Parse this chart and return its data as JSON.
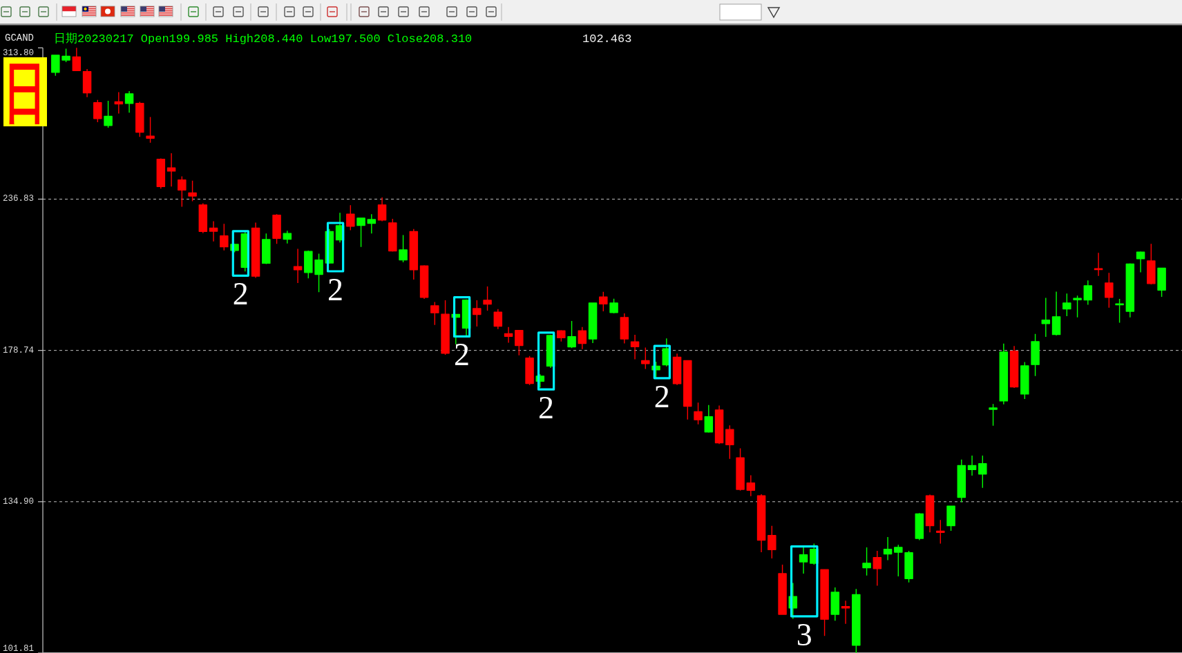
{
  "chart_data": {
    "type": "candlestick",
    "title": "GCAND",
    "subtitle": "日期20230217 Open199.985 High208.440 Low197.500 Close208.310",
    "categories": [
      null,
      null,
      null,
      null,
      null,
      null,
      null,
      null,
      null,
      null,
      null,
      null,
      null,
      null,
      null,
      null,
      null,
      null,
      null,
      null,
      null,
      null,
      null,
      null,
      null,
      null,
      null,
      null,
      null,
      null,
      null,
      null,
      null,
      null,
      null,
      null,
      null,
      null,
      null,
      null,
      null,
      null,
      null,
      null,
      null,
      null,
      null,
      null,
      null,
      null,
      null,
      null,
      null,
      null,
      null,
      null,
      null,
      null,
      null,
      null,
      null,
      null,
      null,
      null,
      null,
      null,
      null,
      null,
      null,
      null,
      null,
      null,
      null,
      null,
      null,
      null,
      null,
      null,
      null,
      null,
      null,
      null,
      null,
      null,
      null,
      null,
      null,
      null,
      null,
      null,
      null,
      null,
      null,
      null,
      null,
      null,
      null,
      null,
      null,
      null,
      null,
      null,
      null,
      null,
      null,
      null
    ],
    "ohlc": [
      [
        299.8,
        309.8,
        297.9,
        309.5
      ],
      [
        306.7,
        313.3,
        305.6,
        308.9
      ],
      [
        308.5,
        313.8,
        300.6,
        300.8
      ],
      [
        300.2,
        301.7,
        286.3,
        288.6
      ],
      [
        283.4,
        284.8,
        273.3,
        275.1
      ],
      [
        271.6,
        284.4,
        270.5,
        276.3
      ],
      [
        283.8,
        289.0,
        277.7,
        282.7
      ],
      [
        283.0,
        289.5,
        278.1,
        288.1
      ],
      [
        283.0,
        283.8,
        265.9,
        268.2
      ],
      [
        266.3,
        275.9,
        263.0,
        265.2
      ],
      [
        255.1,
        255.5,
        241.5,
        242.4
      ],
      [
        251.0,
        257.9,
        242.4,
        249.5
      ],
      [
        245.4,
        247.1,
        233.5,
        240.9
      ],
      [
        239.6,
        245.1,
        235.9,
        238.2
      ],
      [
        234.3,
        235.0,
        222.3,
        223.0
      ],
      [
        224.4,
        227.3,
        218.9,
        223.1
      ],
      [
        221.2,
        226.2,
        215.3,
        216.7
      ],
      [
        215.3,
        218.0,
        214.5,
        217.7
      ],
      [
        208.6,
        222.8,
        207.0,
        222.0
      ],
      [
        224.4,
        226.7,
        204.6,
        205.2
      ],
      [
        210.2,
        222.2,
        209.9,
        219.7
      ],
      [
        229.9,
        230.3,
        217.9,
        220.2
      ],
      [
        219.8,
        223.3,
        218.1,
        222.2
      ],
      [
        208.9,
        215.9,
        202.6,
        207.7
      ],
      [
        206.6,
        215.2,
        204.4,
        214.9
      ],
      [
        205.9,
        214.0,
        199.2,
        211.5
      ],
      [
        210.3,
        224.0,
        210.0,
        223.0
      ],
      [
        219.5,
        230.9,
        218.5,
        225.4
      ],
      [
        230.3,
        234.2,
        223.5,
        225.2
      ],
      [
        225.5,
        228.7,
        216.7,
        228.6
      ],
      [
        226.4,
        230.3,
        222.2,
        228.0
      ],
      [
        234.3,
        237.6,
        227.3,
        227.8
      ],
      [
        226.6,
        228.3,
        214.8,
        215.1
      ],
      [
        211.5,
        221.5,
        210.6,
        215.5
      ],
      [
        223.0,
        224.0,
        203.9,
        207.7
      ],
      [
        209.2,
        209.4,
        196.7,
        197.3
      ],
      [
        194.2,
        195.6,
        187.4,
        191.7
      ],
      [
        191.2,
        196.2,
        177.3,
        177.8
      ],
      [
        190.1,
        191.3,
        180.8,
        191.1
      ],
      [
        186.3,
        196.5,
        183.5,
        196.3
      ],
      [
        193.2,
        196.2,
        186.9,
        191.1
      ],
      [
        196.2,
        201.3,
        192.5,
        194.8
      ],
      [
        191.9,
        193.0,
        186.0,
        187.0
      ],
      [
        184.4,
        186.7,
        181.3,
        183.5
      ],
      [
        185.5,
        185.6,
        177.1,
        180.4
      ],
      [
        176.2,
        176.9,
        167.6,
        168.1
      ],
      [
        168.8,
        171.0,
        166.8,
        170.4
      ],
      [
        173.6,
        184.0,
        173.0,
        183.8
      ],
      [
        185.4,
        185.6,
        181.7,
        183.0
      ],
      [
        179.9,
        188.8,
        179.5,
        183.4
      ],
      [
        185.4,
        186.7,
        179.2,
        181.1
      ],
      [
        182.6,
        195.3,
        181.2,
        195.2
      ],
      [
        197.4,
        199.3,
        192.2,
        194.9
      ],
      [
        191.8,
        196.8,
        191.5,
        195.2
      ],
      [
        190.0,
        191.5,
        181.1,
        182.6
      ],
      [
        181.6,
        184.0,
        175.8,
        180.0
      ],
      [
        175.4,
        179.7,
        172.7,
        174.4
      ],
      [
        172.4,
        175.0,
        169.5,
        173.6
      ],
      [
        174.0,
        182.8,
        173.5,
        179.3
      ],
      [
        176.5,
        177.7,
        167.6,
        168.0
      ],
      [
        175.4,
        175.5,
        157.2,
        161.1
      ],
      [
        159.5,
        162.2,
        155.8,
        157.1
      ],
      [
        153.6,
        161.5,
        153.4,
        158.0
      ],
      [
        160.0,
        161.3,
        150.2,
        150.5
      ],
      [
        154.3,
        155.5,
        146.1,
        150.0
      ],
      [
        146.4,
        149.0,
        137.7,
        138.0
      ],
      [
        139.7,
        141.7,
        136.3,
        137.8
      ],
      [
        136.4,
        136.8,
        122.8,
        125.6
      ],
      [
        126.7,
        129.0,
        121.4,
        123.4
      ],
      [
        118.0,
        120.0,
        109.3,
        109.4
      ],
      [
        110.7,
        116.0,
        108.5,
        113.1
      ],
      [
        120.6,
        123.9,
        118.0,
        122.2
      ],
      [
        120.3,
        124.8,
        120.0,
        123.5
      ],
      [
        118.9,
        119.0,
        105.1,
        108.4
      ],
      [
        109.4,
        115.0,
        108.1,
        114.0
      ],
      [
        111.0,
        112.2,
        107.5,
        110.7
      ],
      [
        103.3,
        114.7,
        101.81,
        113.5
      ],
      [
        119.3,
        123.9,
        117.6,
        120.3
      ],
      [
        121.6,
        123.1,
        115.4,
        119.1
      ],
      [
        122.4,
        126.3,
        121.0,
        123.5
      ],
      [
        122.8,
        124.5,
        117.4,
        123.9
      ],
      [
        116.9,
        123.1,
        116.1,
        122.7
      ],
      [
        126.0,
        132.1,
        125.6,
        131.9
      ],
      [
        136.4,
        136.7,
        127.4,
        129.0
      ],
      [
        127.7,
        130.4,
        124.8,
        127.4
      ],
      [
        129.0,
        133.9,
        127.8,
        133.8
      ],
      [
        136.0,
        145.9,
        134.8,
        144.3
      ],
      [
        143.2,
        147.0,
        141.6,
        144.3
      ],
      [
        142.0,
        147.0,
        138.4,
        144.8
      ],
      [
        160.2,
        161.8,
        155.4,
        160.6
      ],
      [
        162.7,
        181.0,
        161.7,
        178.2
      ],
      [
        178.5,
        180.2,
        166.7,
        167.0
      ],
      [
        164.8,
        174.9,
        163.3,
        173.7
      ],
      [
        174.1,
        184.3,
        170.4,
        181.7
      ],
      [
        187.9,
        197.1,
        183.3,
        189.1
      ],
      [
        184.1,
        199.4,
        183.8,
        190.3
      ],
      [
        193.1,
        198.7,
        190.5,
        195.2
      ],
      [
        196.4,
        197.9,
        190.1,
        196.9
      ],
      [
        196.3,
        203.6,
        194.6,
        201.6
      ],
      [
        208.0,
        214.3,
        205.3,
        207.8
      ],
      [
        202.6,
        206.5,
        193.5,
        197.3
      ],
      [
        194.6,
        196.7,
        188.2,
        194.9
      ],
      [
        192.2,
        210.2,
        190.1,
        209.9
      ],
      [
        212.0,
        214.9,
        206.7,
        214.6
      ],
      [
        211.1,
        217.9,
        202.1,
        202.4
      ],
      [
        199.985,
        208.44,
        197.5,
        208.31
      ]
    ],
    "colors": [
      "#00ff00",
      "#00ff00",
      "#ff0000",
      "#ff0000",
      "#ff0000",
      "#00ff00",
      "#ff0000",
      "#00ff00",
      "#ff0000",
      "#ff0000",
      "#ff0000",
      "#ff0000",
      "#ff0000",
      "#ff0000",
      "#ff0000",
      "#ff0000",
      "#ff0000",
      "#00ff00",
      "#00ff00",
      "#ff0000",
      "#00ff00",
      "#ff0000",
      "#00ff00",
      "#ff0000",
      "#00ff00",
      "#00ff00",
      "#00ff00",
      "#00ff00",
      "#ff0000",
      "#00ff00",
      "#00ff00",
      "#ff0000",
      "#ff0000",
      "#00ff00",
      "#ff0000",
      "#ff0000",
      "#ff0000",
      "#ff0000",
      "#00ff00",
      "#00ff00",
      "#ff0000",
      "#ff0000",
      "#ff0000",
      "#ff0000",
      "#ff0000",
      "#ff0000",
      "#00ff00",
      "#00ff00",
      "#ff0000",
      "#00ff00",
      "#ff0000",
      "#00ff00",
      "#ff0000",
      "#00ff00",
      "#ff0000",
      "#ff0000",
      "#ff0000",
      "#00ff00",
      "#00ff00",
      "#ff0000",
      "#ff0000",
      "#ff0000",
      "#00ff00",
      "#ff0000",
      "#ff0000",
      "#ff0000",
      "#ff0000",
      "#ff0000",
      "#ff0000",
      "#ff0000",
      "#00ff00",
      "#00ff00",
      "#00ff00",
      "#ff0000",
      "#00ff00",
      "#ff0000",
      "#00ff00",
      "#00ff00",
      "#ff0000",
      "#00ff00",
      "#00ff00",
      "#00ff00",
      "#00ff00",
      "#ff0000",
      "#ff0000",
      "#00ff00",
      "#00ff00",
      "#00ff00",
      "#00ff00",
      "#00ff00",
      "#00ff00",
      "#ff0000",
      "#00ff00",
      "#00ff00",
      "#00ff00",
      "#00ff00",
      "#00ff00",
      "#00ff00",
      "#00ff00",
      "#ff0000",
      "#ff0000",
      "#00ff00",
      "#00ff00",
      "#00ff00",
      "#ff0000",
      "#00ff00"
    ],
    "log": true,
    "ylim": [
      101.81,
      313.8
    ],
    "yticks": [
      101.81,
      {
        "value": 134.9,
        "label": "134.90"
      },
      178.74,
      236.83,
      {
        "value": 313.8,
        "label": "313.80"
      }
    ],
    "grid": "y",
    "tick_labels": "y",
    "annotations": [
      "102.463",
      "日",
      "2",
      "2",
      "2",
      "2",
      "2",
      "3"
    ]
  }
}
